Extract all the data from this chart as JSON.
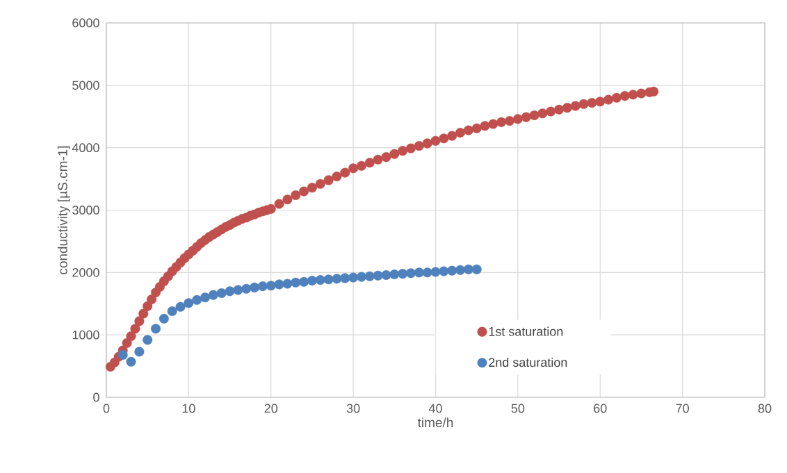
{
  "chart_data": {
    "type": "scatter",
    "xlabel": "time/h",
    "ylabel": "conductivity [µS.cm-1]",
    "xlim": [
      0,
      80
    ],
    "ylim": [
      0,
      6000
    ],
    "xticks": [
      0,
      10,
      20,
      30,
      40,
      50,
      60,
      70,
      80
    ],
    "yticks": [
      0,
      1000,
      2000,
      3000,
      4000,
      5000,
      6000
    ],
    "grid": true,
    "legend": "right",
    "marker": "circle",
    "series": [
      {
        "name": "1st saturation",
        "color": "#c0504d",
        "x": [
          0.5,
          1,
          1.5,
          2,
          2.5,
          3,
          3.5,
          4,
          4.5,
          5,
          5.5,
          6,
          6.5,
          7,
          7.5,
          8,
          8.5,
          9,
          9.5,
          10,
          10.5,
          11,
          11.5,
          12,
          12.5,
          13,
          13.5,
          14,
          14.5,
          15,
          15.5,
          16,
          16.5,
          17,
          17.5,
          18,
          18.5,
          19,
          19.5,
          20,
          21,
          22,
          23,
          24,
          25,
          26,
          27,
          28,
          29,
          30,
          31,
          32,
          33,
          34,
          35,
          36,
          37,
          38,
          39,
          40,
          41,
          42,
          43,
          44,
          45,
          46,
          47,
          48,
          49,
          50,
          51,
          52,
          53,
          54,
          55,
          56,
          57,
          58,
          59,
          60,
          61,
          62,
          63,
          64,
          65,
          66,
          66.5
        ],
        "values": [
          490,
          560,
          650,
          750,
          870,
          980,
          1100,
          1220,
          1340,
          1460,
          1570,
          1680,
          1770,
          1860,
          1940,
          2020,
          2090,
          2160,
          2230,
          2290,
          2350,
          2410,
          2470,
          2520,
          2570,
          2610,
          2650,
          2690,
          2730,
          2760,
          2800,
          2830,
          2860,
          2880,
          2910,
          2930,
          2960,
          2980,
          3000,
          3020,
          3100,
          3170,
          3240,
          3300,
          3360,
          3420,
          3480,
          3540,
          3600,
          3670,
          3710,
          3760,
          3810,
          3850,
          3900,
          3950,
          3990,
          4030,
          4070,
          4110,
          4150,
          4190,
          4240,
          4280,
          4310,
          4350,
          4380,
          4410,
          4430,
          4460,
          4490,
          4520,
          4550,
          4580,
          4610,
          4640,
          4670,
          4700,
          4720,
          4740,
          4770,
          4800,
          4830,
          4850,
          4870,
          4890,
          4900
        ]
      },
      {
        "name": "2nd saturation",
        "color": "#4f81bd",
        "x": [
          2,
          3,
          4,
          5,
          6,
          7,
          8,
          9,
          10,
          11,
          12,
          13,
          14,
          15,
          16,
          17,
          18,
          19,
          20,
          21,
          22,
          23,
          24,
          25,
          26,
          27,
          28,
          29,
          30,
          31,
          32,
          33,
          34,
          35,
          36,
          37,
          38,
          39,
          40,
          41,
          42,
          43,
          44,
          45
        ],
        "values": [
          680,
          570,
          730,
          920,
          1100,
          1260,
          1380,
          1450,
          1510,
          1560,
          1600,
          1640,
          1670,
          1700,
          1720,
          1740,
          1760,
          1780,
          1790,
          1810,
          1820,
          1840,
          1850,
          1870,
          1880,
          1890,
          1900,
          1910,
          1920,
          1930,
          1940,
          1950,
          1960,
          1970,
          1980,
          1990,
          2000,
          2000,
          2010,
          2020,
          2030,
          2040,
          2050,
          2050
        ]
      }
    ]
  }
}
